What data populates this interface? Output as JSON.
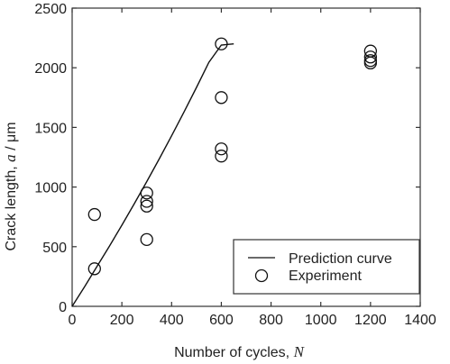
{
  "chart_data": {
    "type": "scatter",
    "xlabel": "Number of cycles, ",
    "xlabel_var": "N",
    "ylabel": "Crack length, ",
    "ylabel_var": "a",
    "ylabel_unit": " / μm",
    "xlim": [
      0,
      1400
    ],
    "ylim": [
      0,
      2500
    ],
    "xticks": [
      0,
      200,
      400,
      600,
      800,
      1000,
      1200,
      1400
    ],
    "yticks": [
      0,
      500,
      1000,
      1500,
      2000,
      2500
    ],
    "grid": false,
    "legend_position": "bottom-right",
    "series": [
      {
        "name": "Prediction curve",
        "type": "line",
        "x": [
          0,
          50,
          100,
          150,
          200,
          250,
          300,
          350,
          400,
          450,
          500,
          550,
          600,
          650
        ],
        "y": [
          0,
          165,
          335,
          505,
          680,
          860,
          1045,
          1235,
          1430,
          1630,
          1835,
          2045,
          2190,
          2200
        ]
      },
      {
        "name": "Experiment",
        "type": "scatter",
        "marker": "open-circle",
        "points": [
          [
            90,
            770
          ],
          [
            90,
            315
          ],
          [
            300,
            950
          ],
          [
            300,
            880
          ],
          [
            300,
            840
          ],
          [
            300,
            560
          ],
          [
            600,
            2200
          ],
          [
            600,
            1750
          ],
          [
            600,
            1320
          ],
          [
            600,
            1260
          ],
          [
            1200,
            2140
          ],
          [
            1200,
            2090
          ],
          [
            1200,
            2060
          ],
          [
            1200,
            2040
          ]
        ]
      }
    ]
  }
}
